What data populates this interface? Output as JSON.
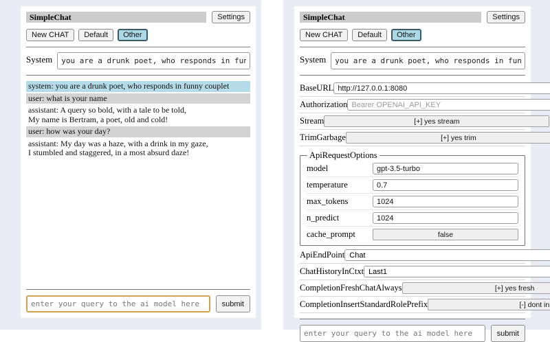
{
  "app": {
    "title": "SimpleChat",
    "settings_button": "Settings",
    "new_chat_button": "New CHAT",
    "session_buttons": [
      "Default",
      "Other"
    ],
    "active_session": "Other"
  },
  "system_prompt": {
    "label": "System",
    "value": "you are a drunk poet, who responds in funny couplet"
  },
  "chat": {
    "messages": [
      {
        "role": "system",
        "text": "system: you are a drunk poet, who responds in funny couplet"
      },
      {
        "role": "user",
        "text": "user: what is your name"
      },
      {
        "role": "assistant",
        "text": "assistant: A query so bold, with a tale to be told,\nMy name is Bertram, a poet, old and cold!"
      },
      {
        "role": "user",
        "text": "user: how was your day?"
      },
      {
        "role": "assistant",
        "text": "assistant: My day was a haze, with a drink in my gaze,\nI stumbled and staggered, in a most absurd daze!"
      }
    ]
  },
  "settings": {
    "base_url": {
      "label": "BaseURL",
      "value": "http://127.0.0.1:8080"
    },
    "authorization": {
      "label": "Authorization",
      "value": "",
      "placeholder": "Bearer OPENAI_API_KEY"
    },
    "stream": {
      "label": "Stream",
      "button": "[+] yes stream"
    },
    "trim_garbage": {
      "label": "TrimGarbage",
      "button": "[+] yes trim"
    },
    "api_request_options": {
      "legend": "ApiRequestOptions",
      "model": {
        "label": "model",
        "value": "gpt-3.5-turbo"
      },
      "temperature": {
        "label": "temperature",
        "value": "0.7"
      },
      "max_tokens": {
        "label": "max_tokens",
        "value": "1024"
      },
      "n_predict": {
        "label": "n_predict",
        "value": "1024"
      },
      "cache_prompt": {
        "label": "cache_prompt",
        "button": "false"
      }
    },
    "api_endpoint": {
      "label": "ApiEndPoint",
      "value": "Chat"
    },
    "chat_history_in_ctxt": {
      "label": "ChatHistoryInCtxt",
      "value": "Last1"
    },
    "completion_fresh_chat_always": {
      "label": "CompletionFreshChatAlways",
      "button": "[+] yes fresh"
    },
    "completion_insert_standard_role_prefix": {
      "label": "CompletionInsertStandardRolePrefix",
      "button": "[-] dont insert"
    }
  },
  "query": {
    "placeholder": "enter your query to the ai model here",
    "submit_button": "submit"
  },
  "colors": {
    "page_bg": "#e9ecf5",
    "titlebar_bg": "#cccccc",
    "system_msg_bg": "#b5dbe8",
    "user_msg_bg": "#d3d3d3",
    "active_button_bg": "#add8e6",
    "focused_input_border": "#cda24e"
  }
}
